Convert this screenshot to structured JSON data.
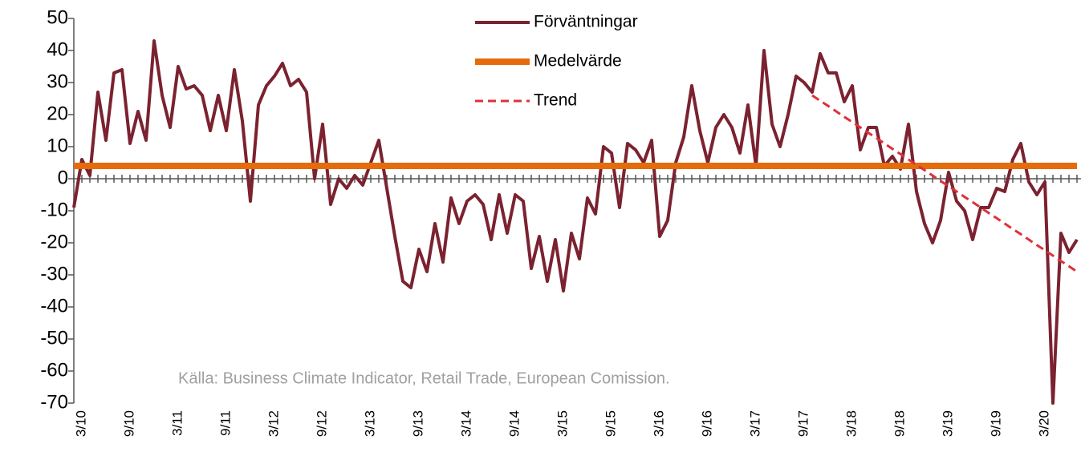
{
  "chart_data": {
    "type": "line",
    "annotation": "Källa: Business Climate Indicator, Retail Trade, European Comission.",
    "categories": [
      null,
      "3/10",
      null,
      null,
      null,
      null,
      null,
      "9/10",
      null,
      null,
      null,
      null,
      null,
      "3/11",
      null,
      null,
      null,
      null,
      null,
      "9/11",
      null,
      null,
      null,
      null,
      null,
      "3/12",
      null,
      null,
      null,
      null,
      null,
      "9/12",
      null,
      null,
      null,
      null,
      null,
      "3/13",
      null,
      null,
      null,
      null,
      null,
      "9/13",
      null,
      null,
      null,
      null,
      null,
      "3/14",
      null,
      null,
      null,
      null,
      null,
      "9/14",
      null,
      null,
      null,
      null,
      null,
      "3/15",
      null,
      null,
      null,
      null,
      null,
      "9/15",
      null,
      null,
      null,
      null,
      null,
      "3/16",
      null,
      null,
      null,
      null,
      null,
      "9/16",
      null,
      null,
      null,
      null,
      null,
      "3/17",
      null,
      null,
      null,
      null,
      null,
      "9/17",
      null,
      null,
      null,
      null,
      null,
      "3/18",
      null,
      null,
      null,
      null,
      null,
      "9/18",
      null,
      null,
      null,
      null,
      null,
      "3/19",
      null,
      null,
      null,
      null,
      null,
      "9/19",
      null,
      null,
      null,
      null,
      null,
      "3/20",
      null,
      null,
      null,
      null
    ],
    "series": [
      {
        "name": "Förväntningar",
        "color": "#7b2230",
        "width": 4,
        "values": [
          -9,
          6,
          1,
          27,
          12,
          33,
          34,
          11,
          21,
          12,
          43,
          26,
          16,
          35,
          28,
          29,
          26,
          15,
          26,
          15,
          34,
          18,
          -7,
          23,
          29,
          32,
          36,
          29,
          31,
          27,
          0,
          17,
          -8,
          0,
          -3,
          1,
          -2,
          5,
          12,
          -3,
          -18,
          -32,
          -34,
          -22,
          -29,
          -14,
          -26,
          -6,
          -14,
          -7,
          -5,
          -8,
          -19,
          -5,
          -17,
          -5,
          -7,
          -28,
          -18,
          -32,
          -19,
          -35,
          -17,
          -25,
          -6,
          -11,
          10,
          8,
          -9,
          11,
          9,
          5,
          12,
          -18,
          -13,
          5,
          13,
          29,
          15,
          5,
          16,
          20,
          16,
          8,
          23,
          4,
          40,
          17,
          10,
          20,
          32,
          30,
          27,
          39,
          33,
          33,
          24,
          29,
          9,
          16,
          16,
          4,
          7,
          3,
          17,
          -4,
          -14,
          -20,
          -13,
          2,
          -7,
          -10,
          -19,
          -9,
          -9,
          -3,
          -4,
          6,
          11,
          -1,
          -5,
          -1,
          -70,
          -17,
          -23,
          -19
        ]
      },
      {
        "name": "Medelvärde",
        "color": "#e46c0a",
        "width": 8,
        "values": [
          4,
          4,
          4,
          4,
          4,
          4,
          4,
          4,
          4,
          4,
          4,
          4,
          4,
          4,
          4,
          4,
          4,
          4,
          4,
          4,
          4,
          4,
          4,
          4,
          4,
          4,
          4,
          4,
          4,
          4,
          4,
          4,
          4,
          4,
          4,
          4,
          4,
          4,
          4,
          4,
          4,
          4,
          4,
          4,
          4,
          4,
          4,
          4,
          4,
          4,
          4,
          4,
          4,
          4,
          4,
          4,
          4,
          4,
          4,
          4,
          4,
          4,
          4,
          4,
          4,
          4,
          4,
          4,
          4,
          4,
          4,
          4,
          4,
          4,
          4,
          4,
          4,
          4,
          4,
          4,
          4,
          4,
          4,
          4,
          4,
          4,
          4,
          4,
          4,
          4,
          4,
          4,
          4,
          4,
          4,
          4,
          4,
          4,
          4,
          4,
          4,
          4,
          4,
          4,
          4,
          4,
          4,
          4,
          4,
          4,
          4,
          4,
          4,
          4,
          4,
          4,
          4,
          4,
          4,
          4,
          4,
          4,
          4,
          4,
          4,
          4
        ]
      },
      {
        "name": "Trend",
        "color": "#e0303a",
        "width": 3,
        "style": "dashed",
        "values": [
          null,
          null,
          null,
          null,
          null,
          null,
          null,
          null,
          null,
          null,
          null,
          null,
          null,
          null,
          null,
          null,
          null,
          null,
          null,
          null,
          null,
          null,
          null,
          null,
          null,
          null,
          null,
          null,
          null,
          null,
          null,
          null,
          null,
          null,
          null,
          null,
          null,
          null,
          null,
          null,
          null,
          null,
          null,
          null,
          null,
          null,
          null,
          null,
          null,
          null,
          null,
          null,
          null,
          null,
          null,
          null,
          null,
          null,
          null,
          null,
          null,
          null,
          null,
          null,
          null,
          null,
          null,
          null,
          null,
          null,
          null,
          null,
          null,
          null,
          null,
          null,
          null,
          null,
          null,
          null,
          null,
          null,
          null,
          null,
          null,
          null,
          null,
          null,
          null,
          null,
          null,
          null,
          26,
          24.3,
          22.7,
          21,
          19.3,
          17.7,
          16,
          14.3,
          12.7,
          11,
          9.3,
          7.7,
          6,
          4.3,
          2.7,
          1,
          -0.7,
          -2.3,
          -4,
          -5.7,
          -7.3,
          -9,
          -10.7,
          -12.3,
          -14,
          -15.7,
          -17.3,
          -19,
          -20.7,
          -22.3,
          -24,
          -25.7,
          -27.3,
          -29
        ]
      }
    ],
    "ylim": [
      -70,
      50
    ],
    "yticks": [
      -70,
      -60,
      -50,
      -40,
      -30,
      -20,
      -10,
      0,
      10,
      20,
      30,
      40,
      50
    ],
    "legend": "top"
  }
}
